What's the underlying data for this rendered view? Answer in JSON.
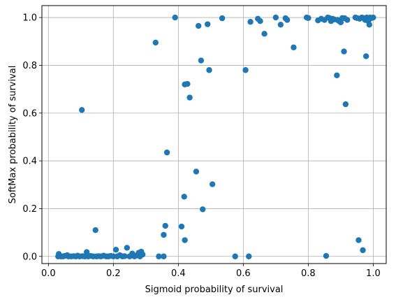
{
  "chart_data": {
    "type": "scatter",
    "title": "",
    "xlabel": "Sigmoid probability of survival",
    "ylabel": "SoftMax probability of survival",
    "xlim": [
      -0.02,
      1.04
    ],
    "ylim": [
      -0.03,
      1.05
    ],
    "xticks": [
      0.0,
      0.2,
      0.4,
      0.6,
      0.8,
      1.0
    ],
    "xtick_labels": [
      "0.0",
      "0.2",
      "0.4",
      "0.6",
      "0.8",
      "1.0"
    ],
    "yticks": [
      0.0,
      0.2,
      0.4,
      0.6,
      0.8,
      1.0
    ],
    "ytick_labels": [
      "0.0",
      "0.2",
      "0.4",
      "0.6",
      "0.8",
      "1.0"
    ],
    "grid": true,
    "marker_color": "#1f77b4",
    "points": [
      {
        "x": 0.03,
        "y": 0.0
      },
      {
        "x": 0.032,
        "y": 0.01
      },
      {
        "x": 0.038,
        "y": 0.0
      },
      {
        "x": 0.045,
        "y": 0.0
      },
      {
        "x": 0.05,
        "y": 0.002
      },
      {
        "x": 0.058,
        "y": 0.005
      },
      {
        "x": 0.062,
        "y": 0.0
      },
      {
        "x": 0.07,
        "y": 0.0
      },
      {
        "x": 0.078,
        "y": 0.001
      },
      {
        "x": 0.085,
        "y": 0.0
      },
      {
        "x": 0.09,
        "y": 0.003
      },
      {
        "x": 0.096,
        "y": 0.0
      },
      {
        "x": 0.103,
        "y": 0.613
      },
      {
        "x": 0.105,
        "y": 0.001
      },
      {
        "x": 0.112,
        "y": 0.0
      },
      {
        "x": 0.118,
        "y": 0.018
      },
      {
        "x": 0.122,
        "y": 0.0
      },
      {
        "x": 0.13,
        "y": 0.002
      },
      {
        "x": 0.138,
        "y": 0.0
      },
      {
        "x": 0.145,
        "y": 0.11
      },
      {
        "x": 0.148,
        "y": 0.0
      },
      {
        "x": 0.155,
        "y": 0.001
      },
      {
        "x": 0.162,
        "y": 0.0
      },
      {
        "x": 0.17,
        "y": 0.003
      },
      {
        "x": 0.178,
        "y": 0.0
      },
      {
        "x": 0.185,
        "y": 0.0
      },
      {
        "x": 0.192,
        "y": 0.002
      },
      {
        "x": 0.2,
        "y": 0.0
      },
      {
        "x": 0.208,
        "y": 0.028
      },
      {
        "x": 0.212,
        "y": 0.0
      },
      {
        "x": 0.22,
        "y": 0.005
      },
      {
        "x": 0.228,
        "y": 0.0
      },
      {
        "x": 0.235,
        "y": 0.001
      },
      {
        "x": 0.242,
        "y": 0.036
      },
      {
        "x": 0.25,
        "y": 0.0
      },
      {
        "x": 0.258,
        "y": 0.012
      },
      {
        "x": 0.265,
        "y": 0.0
      },
      {
        "x": 0.272,
        "y": 0.004
      },
      {
        "x": 0.278,
        "y": 0.015
      },
      {
        "x": 0.282,
        "y": 0.0
      },
      {
        "x": 0.286,
        "y": 0.02
      },
      {
        "x": 0.29,
        "y": 0.008
      },
      {
        "x": 0.33,
        "y": 0.895
      },
      {
        "x": 0.34,
        "y": 0.0
      },
      {
        "x": 0.355,
        "y": 0.0
      },
      {
        "x": 0.355,
        "y": 0.09
      },
      {
        "x": 0.36,
        "y": 0.128
      },
      {
        "x": 0.365,
        "y": 0.435
      },
      {
        "x": 0.39,
        "y": 1.0
      },
      {
        "x": 0.41,
        "y": 0.125
      },
      {
        "x": 0.418,
        "y": 0.25
      },
      {
        "x": 0.42,
        "y": 0.72
      },
      {
        "x": 0.42,
        "y": 0.068
      },
      {
        "x": 0.428,
        "y": 0.722
      },
      {
        "x": 0.435,
        "y": 0.665
      },
      {
        "x": 0.455,
        "y": 0.355
      },
      {
        "x": 0.462,
        "y": 0.965
      },
      {
        "x": 0.47,
        "y": 0.82
      },
      {
        "x": 0.475,
        "y": 0.197
      },
      {
        "x": 0.49,
        "y": 0.972
      },
      {
        "x": 0.495,
        "y": 0.78
      },
      {
        "x": 0.505,
        "y": 0.302
      },
      {
        "x": 0.535,
        "y": 0.997
      },
      {
        "x": 0.575,
        "y": 0.0
      },
      {
        "x": 0.607,
        "y": 0.78
      },
      {
        "x": 0.617,
        "y": 0.0
      },
      {
        "x": 0.622,
        "y": 0.982
      },
      {
        "x": 0.645,
        "y": 0.995
      },
      {
        "x": 0.652,
        "y": 0.985
      },
      {
        "x": 0.665,
        "y": 0.932
      },
      {
        "x": 0.7,
        "y": 1.0
      },
      {
        "x": 0.715,
        "y": 0.97
      },
      {
        "x": 0.73,
        "y": 0.997
      },
      {
        "x": 0.735,
        "y": 0.99
      },
      {
        "x": 0.755,
        "y": 0.875
      },
      {
        "x": 0.795,
        "y": 1.0
      },
      {
        "x": 0.8,
        "y": 0.998
      },
      {
        "x": 0.83,
        "y": 0.988
      },
      {
        "x": 0.84,
        "y": 0.995
      },
      {
        "x": 0.85,
        "y": 0.99
      },
      {
        "x": 0.855,
        "y": 0.002
      },
      {
        "x": 0.86,
        "y": 1.0
      },
      {
        "x": 0.865,
        "y": 0.998
      },
      {
        "x": 0.87,
        "y": 0.985
      },
      {
        "x": 0.875,
        "y": 0.995
      },
      {
        "x": 0.88,
        "y": 0.992
      },
      {
        "x": 0.888,
        "y": 0.758
      },
      {
        "x": 0.89,
        "y": 0.99
      },
      {
        "x": 0.895,
        "y": 0.985
      },
      {
        "x": 0.9,
        "y": 0.98
      },
      {
        "x": 0.905,
        "y": 0.998
      },
      {
        "x": 0.91,
        "y": 0.858
      },
      {
        "x": 0.912,
        "y": 0.997
      },
      {
        "x": 0.915,
        "y": 0.637
      },
      {
        "x": 0.92,
        "y": 0.99
      },
      {
        "x": 0.945,
        "y": 1.0
      },
      {
        "x": 0.95,
        "y": 0.998
      },
      {
        "x": 0.955,
        "y": 0.068
      },
      {
        "x": 0.958,
        "y": 0.995
      },
      {
        "x": 0.965,
        "y": 1.0
      },
      {
        "x": 0.968,
        "y": 0.026
      },
      {
        "x": 0.97,
        "y": 0.998
      },
      {
        "x": 0.975,
        "y": 0.99
      },
      {
        "x": 0.978,
        "y": 0.838
      },
      {
        "x": 0.98,
        "y": 1.0
      },
      {
        "x": 0.985,
        "y": 0.985
      },
      {
        "x": 0.988,
        "y": 0.97
      },
      {
        "x": 0.99,
        "y": 1.0
      },
      {
        "x": 0.995,
        "y": 0.998
      },
      {
        "x": 1.0,
        "y": 1.0
      }
    ]
  }
}
